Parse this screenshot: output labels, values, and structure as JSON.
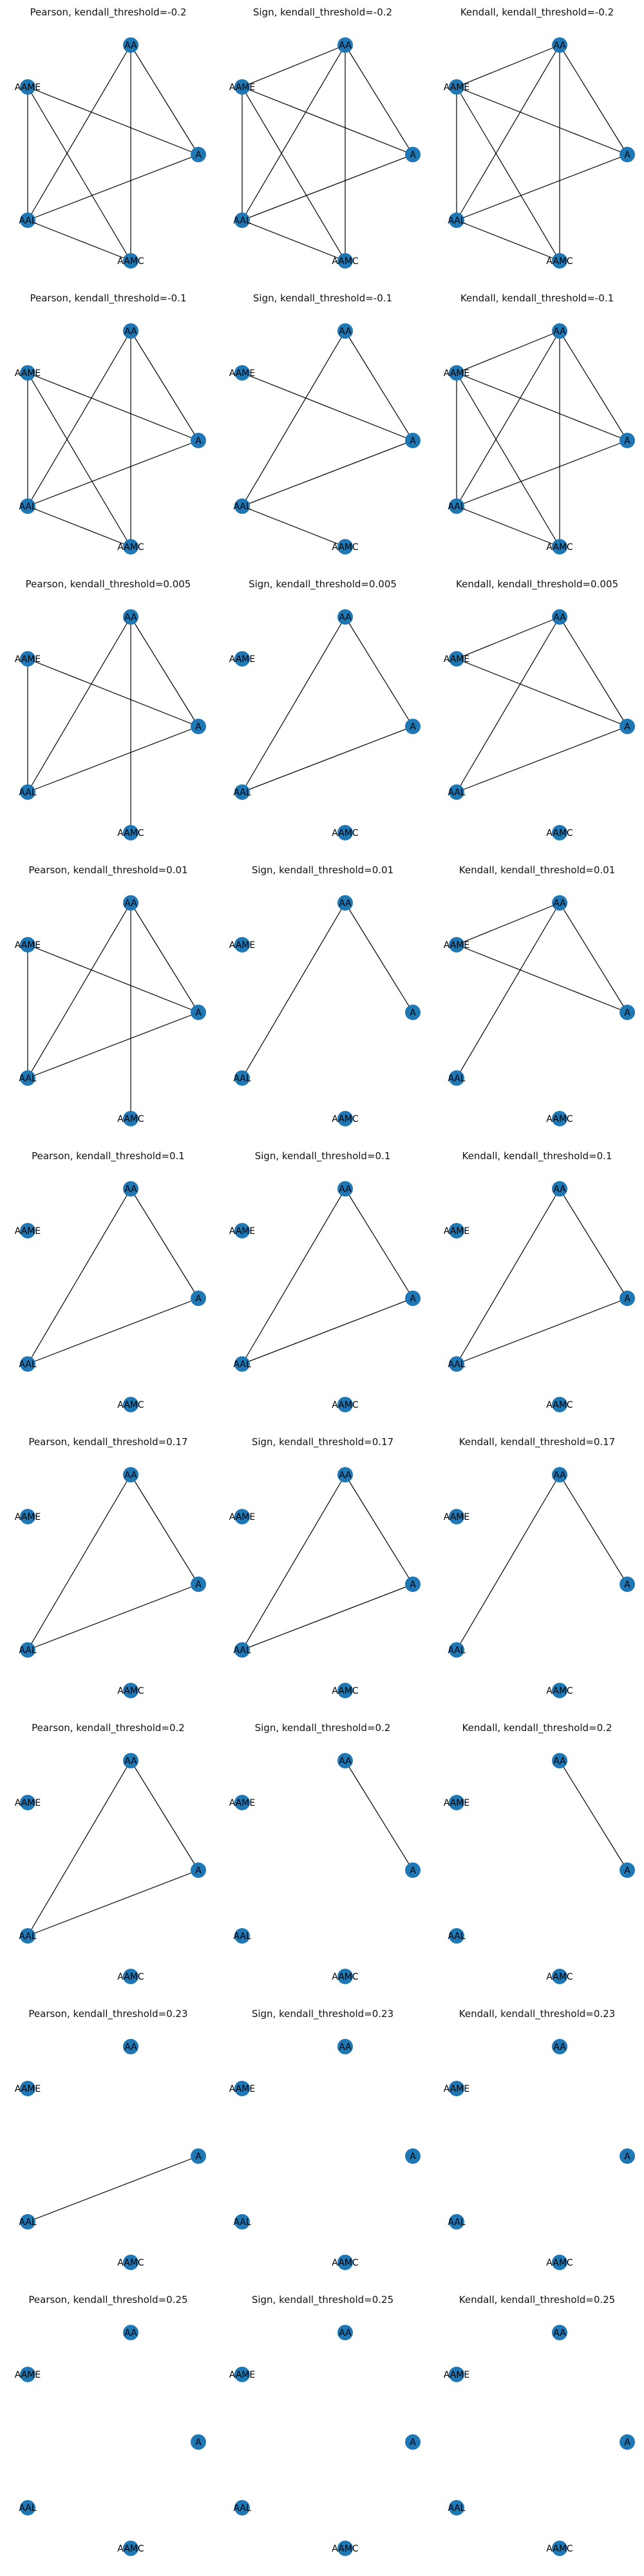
{
  "node_color": "#1f77b4",
  "edge_color": "#000000",
  "nodes": [
    "AA",
    "AAME",
    "A",
    "AAL",
    "AAMC"
  ],
  "panels": [
    {
      "title": "Pearson, kendall_threshold=-0.2",
      "edges": [
        [
          "AA",
          "AAL"
        ],
        [
          "AA",
          "A"
        ],
        [
          "AA",
          "AAMC"
        ],
        [
          "AAME",
          "A"
        ],
        [
          "AAME",
          "AAL"
        ],
        [
          "AAME",
          "AAMC"
        ],
        [
          "AAL",
          "A"
        ],
        [
          "AAL",
          "AAMC"
        ]
      ]
    },
    {
      "title": "Sign, kendall_threshold=-0.2",
      "edges": [
        [
          "AA",
          "AAME"
        ],
        [
          "AA",
          "AAL"
        ],
        [
          "AA",
          "A"
        ],
        [
          "AA",
          "AAMC"
        ],
        [
          "AAME",
          "A"
        ],
        [
          "AAME",
          "AAL"
        ],
        [
          "AAME",
          "AAMC"
        ],
        [
          "AAL",
          "A"
        ],
        [
          "AAL",
          "AAMC"
        ]
      ]
    },
    {
      "title": "Kendall, kendall_threshold=-0.2",
      "edges": [
        [
          "AA",
          "AAME"
        ],
        [
          "AA",
          "AAL"
        ],
        [
          "AA",
          "A"
        ],
        [
          "AA",
          "AAMC"
        ],
        [
          "AAME",
          "A"
        ],
        [
          "AAME",
          "AAL"
        ],
        [
          "AAME",
          "AAMC"
        ],
        [
          "AAL",
          "A"
        ],
        [
          "AAL",
          "AAMC"
        ]
      ]
    },
    {
      "title": "Pearson, kendall_threshold=-0.1",
      "edges": [
        [
          "AA",
          "AAL"
        ],
        [
          "AA",
          "A"
        ],
        [
          "AA",
          "AAMC"
        ],
        [
          "AAME",
          "A"
        ],
        [
          "AAME",
          "AAL"
        ],
        [
          "AAME",
          "AAMC"
        ],
        [
          "AAL",
          "A"
        ],
        [
          "AAL",
          "AAMC"
        ]
      ]
    },
    {
      "title": "Sign, kendall_threshold=-0.1",
      "edges": [
        [
          "AA",
          "AAL"
        ],
        [
          "AA",
          "A"
        ],
        [
          "AAME",
          "A"
        ],
        [
          "AAL",
          "A"
        ],
        [
          "AAL",
          "AAMC"
        ]
      ]
    },
    {
      "title": "Kendall, kendall_threshold=-0.1",
      "edges": [
        [
          "AA",
          "AAME"
        ],
        [
          "AA",
          "AAL"
        ],
        [
          "AA",
          "A"
        ],
        [
          "AA",
          "AAMC"
        ],
        [
          "AAME",
          "A"
        ],
        [
          "AAME",
          "AAL"
        ],
        [
          "AAME",
          "AAMC"
        ],
        [
          "AAL",
          "A"
        ],
        [
          "AAL",
          "AAMC"
        ]
      ]
    },
    {
      "title": "Pearson, kendall_threshold=0.005",
      "edges": [
        [
          "AA",
          "AAL"
        ],
        [
          "AA",
          "A"
        ],
        [
          "AA",
          "AAMC"
        ],
        [
          "AAME",
          "A"
        ],
        [
          "AAME",
          "AAL"
        ],
        [
          "AAL",
          "A"
        ]
      ]
    },
    {
      "title": "Sign, kendall_threshold=0.005",
      "edges": [
        [
          "AA",
          "AAL"
        ],
        [
          "AA",
          "A"
        ],
        [
          "AAL",
          "A"
        ]
      ]
    },
    {
      "title": "Kendall, kendall_threshold=0.005",
      "edges": [
        [
          "AA",
          "AAL"
        ],
        [
          "AA",
          "A"
        ],
        [
          "AA",
          "AAME"
        ],
        [
          "AAME",
          "A"
        ],
        [
          "AAL",
          "A"
        ]
      ]
    },
    {
      "title": "Pearson, kendall_threshold=0.01",
      "edges": [
        [
          "AA",
          "AAL"
        ],
        [
          "AA",
          "A"
        ],
        [
          "AA",
          "AAMC"
        ],
        [
          "AAME",
          "A"
        ],
        [
          "AAME",
          "AAL"
        ],
        [
          "AAL",
          "A"
        ]
      ]
    },
    {
      "title": "Sign, kendall_threshold=0.01",
      "edges": [
        [
          "AA",
          "AAL"
        ],
        [
          "AA",
          "A"
        ]
      ]
    },
    {
      "title": "Kendall, kendall_threshold=0.01",
      "edges": [
        [
          "AA",
          "AAL"
        ],
        [
          "AA",
          "A"
        ],
        [
          "AA",
          "AAME"
        ],
        [
          "AAME",
          "A"
        ]
      ]
    },
    {
      "title": "Pearson, kendall_threshold=0.1",
      "edges": [
        [
          "AA",
          "AAL"
        ],
        [
          "AA",
          "A"
        ],
        [
          "AAL",
          "A"
        ]
      ]
    },
    {
      "title": "Sign, kendall_threshold=0.1",
      "edges": [
        [
          "AA",
          "AAL"
        ],
        [
          "AA",
          "A"
        ],
        [
          "AAL",
          "A"
        ]
      ]
    },
    {
      "title": "Kendall, kendall_threshold=0.1",
      "edges": [
        [
          "AA",
          "AAL"
        ],
        [
          "AA",
          "A"
        ],
        [
          "AAL",
          "A"
        ]
      ]
    },
    {
      "title": "Pearson, kendall_threshold=0.17",
      "edges": [
        [
          "AA",
          "AAL"
        ],
        [
          "AA",
          "A"
        ],
        [
          "AAL",
          "A"
        ]
      ]
    },
    {
      "title": "Sign, kendall_threshold=0.17",
      "edges": [
        [
          "AA",
          "AAL"
        ],
        [
          "AA",
          "A"
        ],
        [
          "AAL",
          "A"
        ]
      ]
    },
    {
      "title": "Kendall, kendall_threshold=0.17",
      "edges": [
        [
          "AA",
          "AAL"
        ],
        [
          "AA",
          "A"
        ]
      ]
    },
    {
      "title": "Pearson, kendall_threshold=0.2",
      "edges": [
        [
          "AA",
          "AAL"
        ],
        [
          "AA",
          "A"
        ],
        [
          "AAL",
          "A"
        ]
      ]
    },
    {
      "title": "Sign, kendall_threshold=0.2",
      "edges": [
        [
          "AA",
          "A"
        ]
      ]
    },
    {
      "title": "Kendall, kendall_threshold=0.2",
      "edges": [
        [
          "AA",
          "A"
        ]
      ]
    },
    {
      "title": "Pearson, kendall_threshold=0.23",
      "edges": [
        [
          "AAL",
          "A"
        ]
      ]
    },
    {
      "title": "Sign, kendall_threshold=0.23",
      "edges": []
    },
    {
      "title": "Kendall, kendall_threshold=0.23",
      "edges": []
    },
    {
      "title": "Pearson, kendall_threshold=0.25",
      "edges": []
    },
    {
      "title": "Sign, kendall_threshold=0.25",
      "edges": []
    },
    {
      "title": "Kendall, kendall_threshold=0.25",
      "edges": []
    }
  ]
}
